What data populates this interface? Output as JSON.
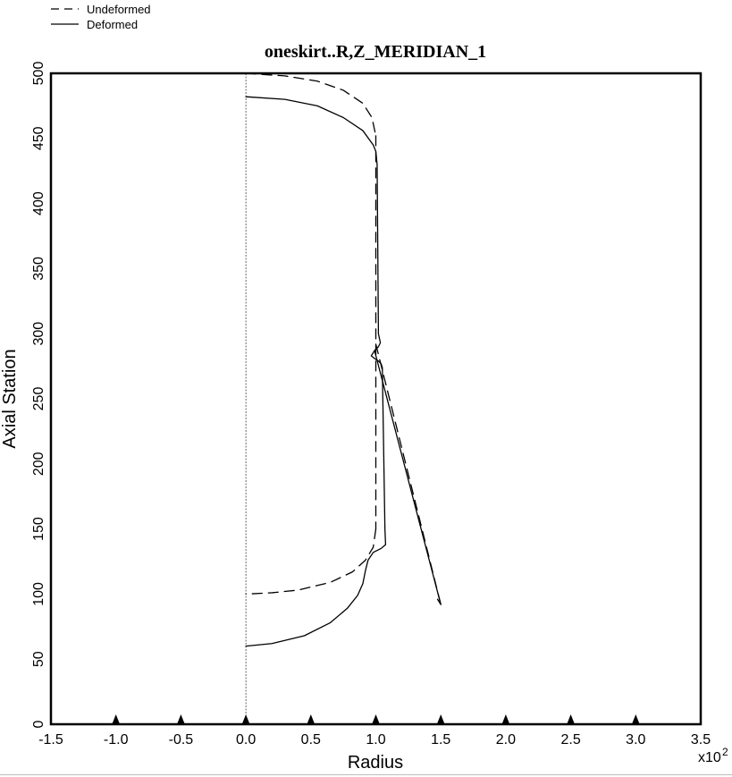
{
  "chart_data": {
    "type": "line",
    "title": "oneskirt..R,Z_MERIDIAN_1",
    "xlabel": "Radius",
    "ylabel": "Axial Station",
    "x_multiplier": "x10",
    "x_multiplier_exp": "2",
    "xlim": [
      -1.5,
      3.5
    ],
    "ylim": [
      0,
      500
    ],
    "x_ticks": [
      "-1.5",
      "-1.0",
      "-0.5",
      "0.0",
      "0.5",
      "1.0",
      "1.5",
      "2.0",
      "2.5",
      "3.0",
      "3.5"
    ],
    "y_ticks": [
      "0",
      "50",
      "100",
      "150",
      "200",
      "250",
      "300",
      "350",
      "400",
      "450",
      "500"
    ],
    "axis_line_x": 0,
    "marker_x": [
      -1.0,
      -0.5,
      0.0,
      0.5,
      1.0,
      1.5,
      2.0,
      2.5,
      3.0
    ],
    "legend": {
      "position": "top-left",
      "entries": [
        {
          "name": "Undeformed",
          "style": "dashed"
        },
        {
          "name": "Deformed",
          "style": "solid"
        }
      ]
    },
    "series": [
      {
        "name": "Undeformed",
        "style": "dashed",
        "segments": [
          [
            [
              0.0,
              500
            ],
            [
              0.3,
              498
            ],
            [
              0.55,
              494
            ],
            [
              0.75,
              487
            ],
            [
              0.9,
              477
            ],
            [
              0.97,
              466
            ],
            [
              1.0,
              452
            ]
          ],
          [
            [
              1.0,
              452
            ],
            [
              1.0,
              300
            ],
            [
              1.0,
              290
            ],
            [
              1.0,
              150
            ]
          ],
          [
            [
              1.0,
              150
            ],
            [
              0.98,
              136
            ],
            [
              0.92,
              126
            ],
            [
              0.82,
              117
            ],
            [
              0.65,
              109
            ],
            [
              0.4,
              103
            ],
            [
              0.2,
              101
            ],
            [
              0.0,
              100
            ]
          ],
          [
            [
              1.0,
              292
            ],
            [
              1.5,
              92
            ]
          ]
        ]
      },
      {
        "name": "Deformed",
        "style": "solid",
        "segments": [
          [
            [
              0.0,
              482
            ],
            [
              0.3,
              480
            ],
            [
              0.55,
              475
            ],
            [
              0.75,
              466
            ],
            [
              0.9,
              456
            ],
            [
              0.98,
              445
            ],
            [
              1.0,
              440
            ],
            [
              1.01,
              430
            ],
            [
              1.02,
              300
            ],
            [
              1.035,
              293
            ],
            [
              1.02,
              290
            ],
            [
              0.99,
              287
            ],
            [
              0.965,
              283
            ],
            [
              0.99,
              281
            ],
            [
              1.02,
              279
            ],
            [
              1.04,
              277
            ],
            [
              1.05,
              274
            ],
            [
              1.07,
              150
            ],
            [
              1.075,
              138
            ],
            [
              1.04,
              135
            ],
            [
              0.98,
              132
            ],
            [
              0.94,
              126
            ],
            [
              0.92,
              118
            ],
            [
              0.9,
              108
            ],
            [
              0.86,
              99
            ],
            [
              0.78,
              89
            ],
            [
              0.65,
              78
            ],
            [
              0.45,
              68
            ],
            [
              0.2,
              62
            ],
            [
              0.0,
              60
            ]
          ],
          [
            [
              0.99,
              287
            ],
            [
              1.5,
              92
            ]
          ],
          [
            [
              1.5,
              92
            ],
            [
              1.475,
              96
            ]
          ]
        ]
      }
    ]
  }
}
